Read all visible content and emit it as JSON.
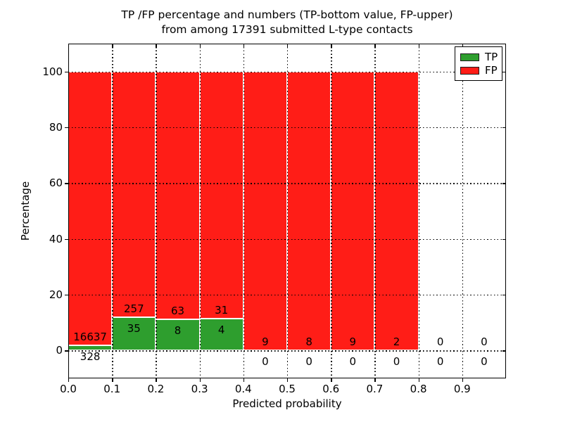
{
  "chart_data": {
    "type": "bar",
    "stacked": true,
    "normalized_to_percent": true,
    "title": {
      "line1": "TP /FP percentage and numbers (TP-bottom value, FP-upper)",
      "line2": "from among 17391 submitted L-type contacts"
    },
    "xlabel": "Predicted probability",
    "ylabel": "Percentage",
    "total_contacts": 17391,
    "xlim": [
      0.0,
      1.0
    ],
    "ylim": [
      -10,
      110
    ],
    "bin_width": 0.1,
    "xtick_values": [
      0.0,
      0.1,
      0.2,
      0.3,
      0.4,
      0.5,
      0.6,
      0.7,
      0.8,
      0.9
    ],
    "xtick_labels": [
      "0.0",
      "0.1",
      "0.2",
      "0.3",
      "0.4",
      "0.5",
      "0.6",
      "0.7",
      "0.8",
      "0.9"
    ],
    "ytick_values": [
      0,
      20,
      40,
      60,
      80,
      100
    ],
    "ytick_labels": [
      "0",
      "20",
      "40",
      "60",
      "80",
      "100"
    ],
    "grid": "dotted",
    "legend_position": "upper right",
    "series": [
      {
        "name": "TP",
        "color": "#2e9e2e",
        "counts": [
          328,
          35,
          8,
          4,
          0,
          0,
          0,
          0,
          0,
          0
        ]
      },
      {
        "name": "FP",
        "color": "#ff1d17",
        "counts": [
          16637,
          257,
          63,
          31,
          9,
          8,
          9,
          2,
          0,
          0
        ]
      }
    ],
    "annotation_note": "TP-bottom value, FP-upper"
  }
}
